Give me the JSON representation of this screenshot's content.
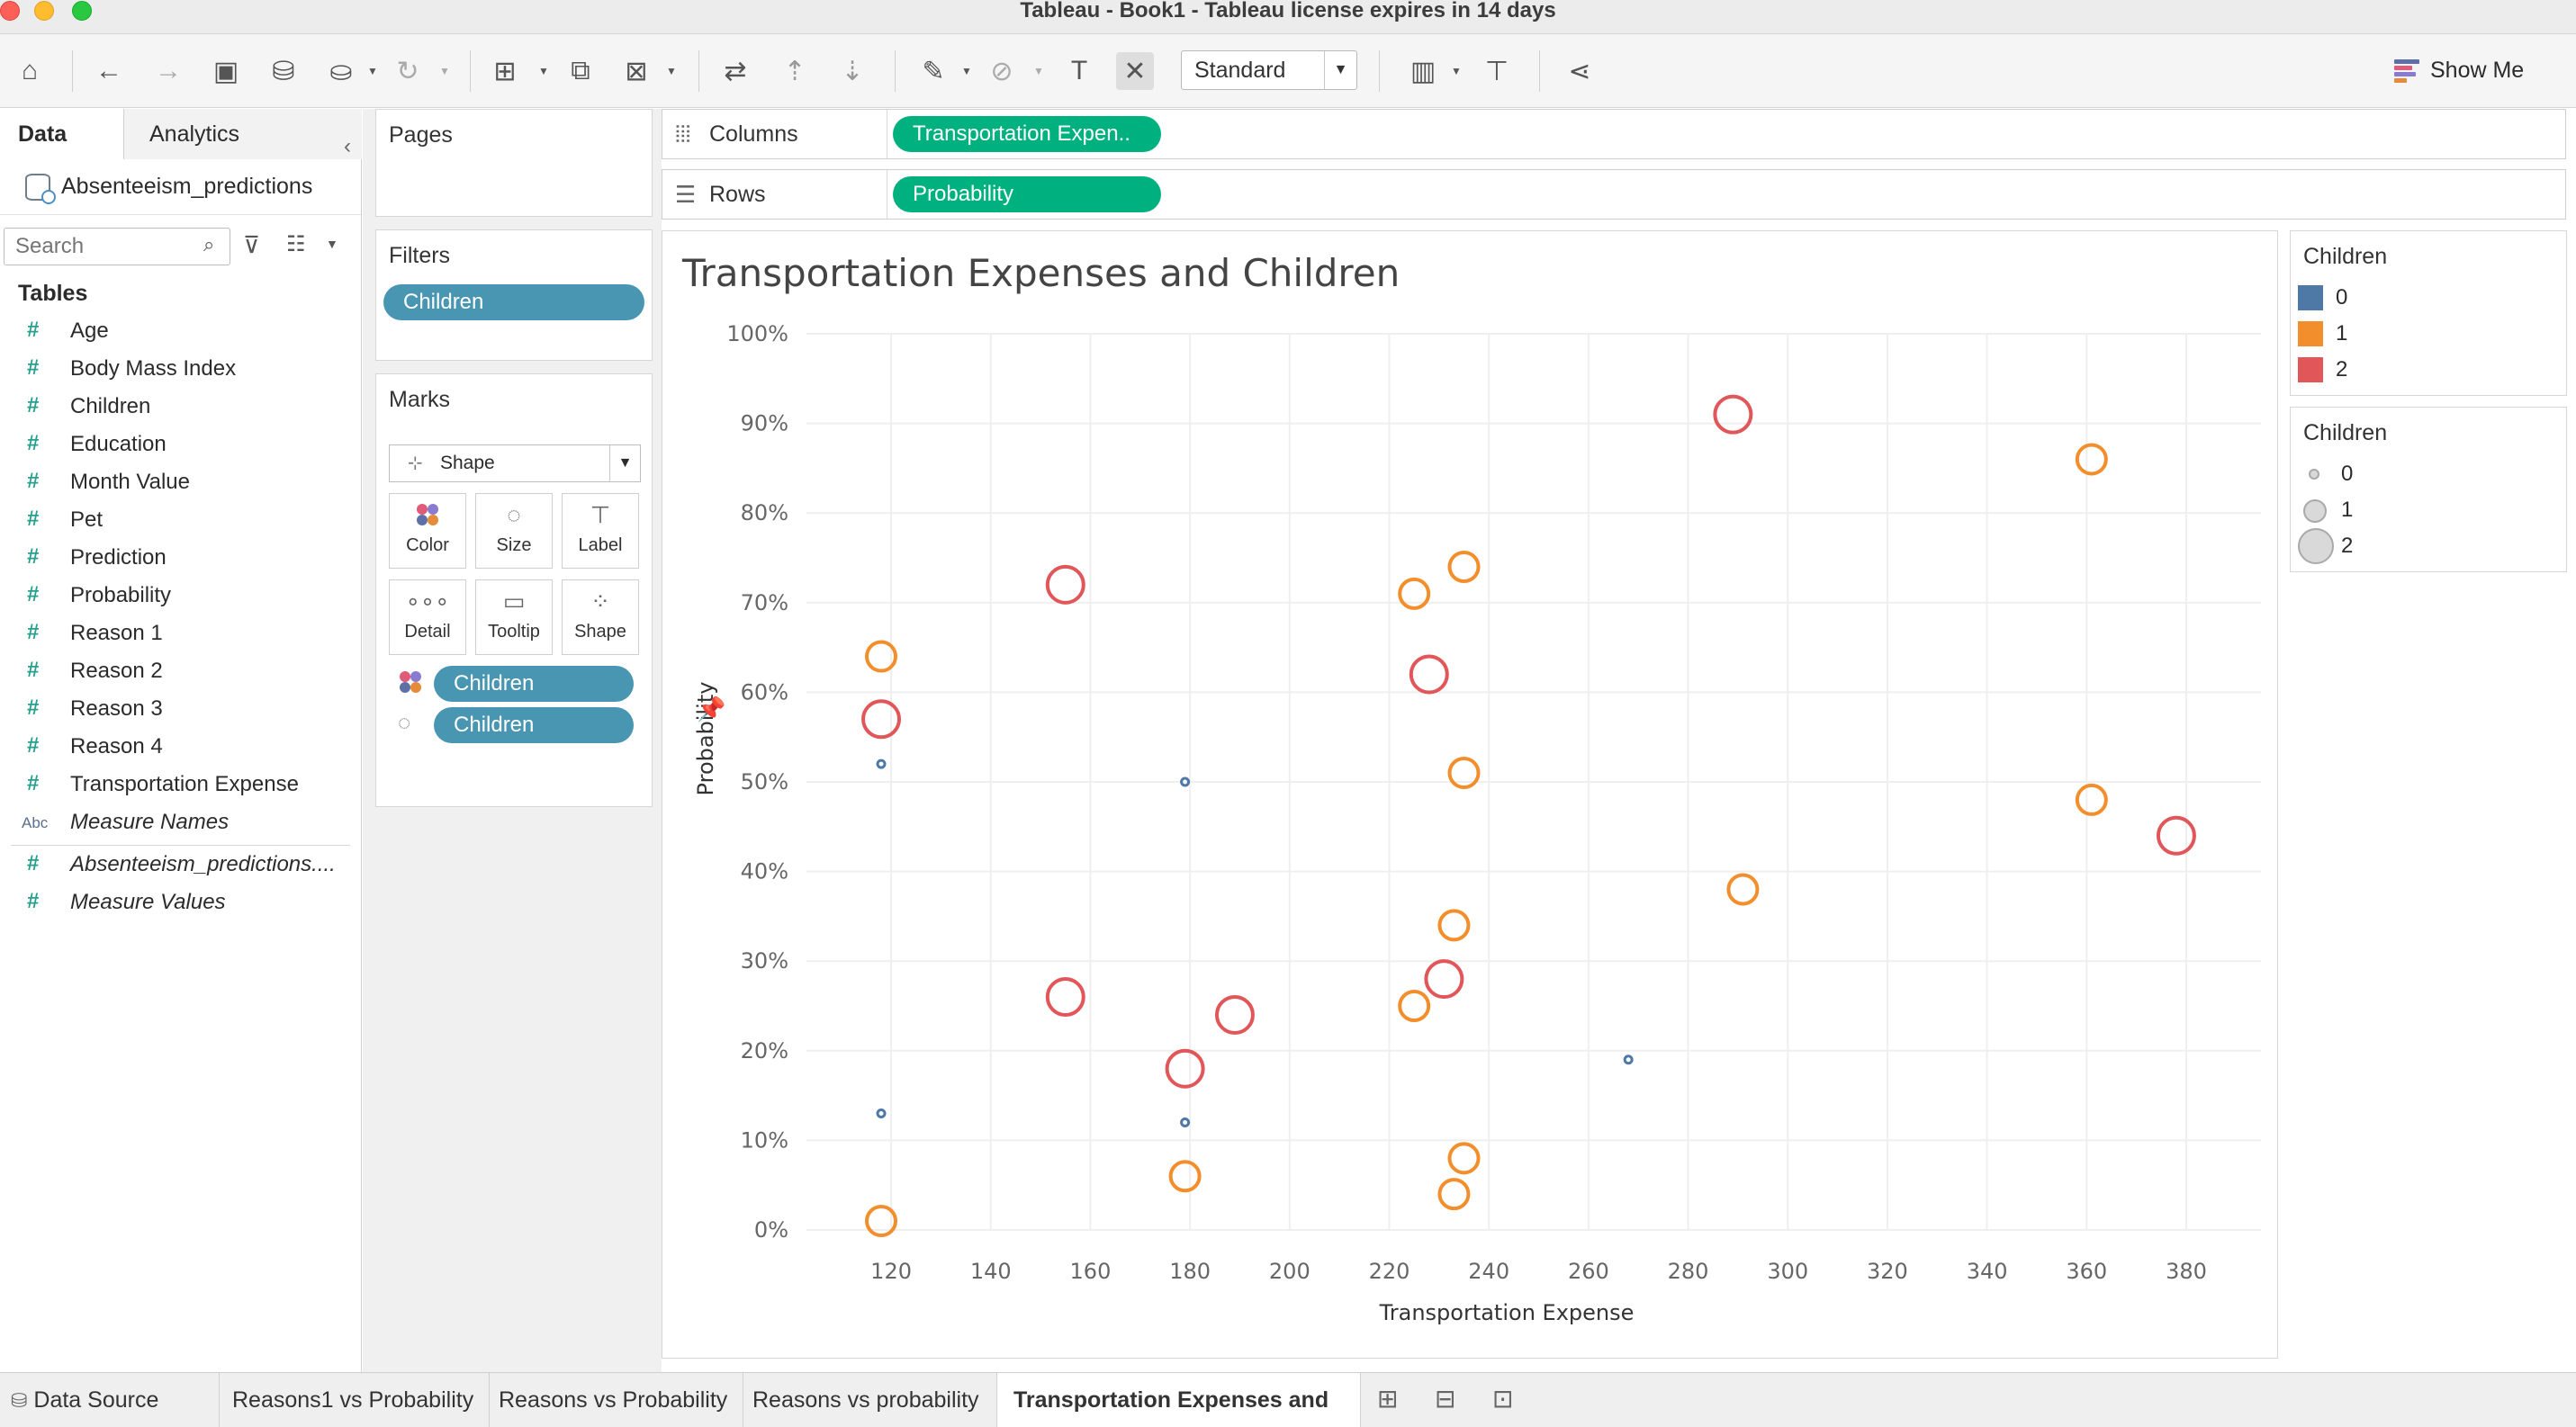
{
  "window": {
    "title": "Tableau - Book1 - Tableau license expires in 14 days"
  },
  "toolbar": {
    "fit_value": "Standard",
    "show_me": "Show Me"
  },
  "data_pane": {
    "tabs": [
      "Data",
      "Analytics"
    ],
    "datasource": "Absenteeism_predictions",
    "search_placeholder": "Search",
    "tables_heading": "Tables",
    "fields": [
      "Age",
      "Body Mass Index",
      "Children",
      "Education",
      "Month Value",
      "Pet",
      "Prediction",
      "Probability",
      "Reason 1",
      "Reason 2",
      "Reason 3",
      "Reason 4",
      "Transportation Expense"
    ],
    "measure_names": "Measure Names",
    "extra_fields": [
      "Absenteeism_predictions....",
      "Measure Values"
    ]
  },
  "cards": {
    "pages_title": "Pages",
    "filters_title": "Filters",
    "filter_pill": "Children",
    "marks_title": "Marks",
    "mark_type": "Shape",
    "mark_buttons": [
      "Color",
      "Size",
      "Label",
      "Detail",
      "Tooltip",
      "Shape"
    ],
    "mark_pills": [
      "Children",
      "Children"
    ]
  },
  "shelves": {
    "columns_label": "Columns",
    "columns_pill": "Transportation Expen..",
    "rows_label": "Rows",
    "rows_pill": "Probability"
  },
  "viz": {
    "title": "Transportation Expenses and Children"
  },
  "legends": {
    "color_title": "Children",
    "color_items": [
      {
        "label": "0",
        "color": "#4e79a7"
      },
      {
        "label": "1",
        "color": "#f28e2b"
      },
      {
        "label": "2",
        "color": "#e15759"
      }
    ],
    "size_title": "Children",
    "size_items": [
      "0",
      "1",
      "2"
    ]
  },
  "bottom_tabs": [
    "Data Source",
    "Reasons1 vs Probability",
    "Reasons vs Probability",
    "Reasons vs  probability",
    "Transportation Expenses and C..."
  ],
  "chart_data": {
    "type": "scatter",
    "title": "Transportation Expenses and Children",
    "xlabel": "Transportation Expense",
    "ylabel": "Probability",
    "x_ticks": [
      120,
      140,
      160,
      180,
      200,
      220,
      240,
      260,
      280,
      300,
      320,
      340,
      360,
      380
    ],
    "y_ticks": [
      "0%",
      "10%",
      "20%",
      "30%",
      "40%",
      "50%",
      "60%",
      "70%",
      "80%",
      "90%",
      "100%"
    ],
    "xlim": [
      103,
      395
    ],
    "ylim": [
      0,
      1
    ],
    "grid": true,
    "series": [
      {
        "name": "0",
        "color": "#4e79a7",
        "points": [
          [
            118,
            0.52
          ],
          [
            118,
            0.13
          ],
          [
            179,
            0.5
          ],
          [
            179,
            0.12
          ],
          [
            268,
            0.19
          ]
        ]
      },
      {
        "name": "1",
        "color": "#f28e2b",
        "points": [
          [
            118,
            0.64
          ],
          [
            118,
            0.01
          ],
          [
            179,
            0.06
          ],
          [
            225,
            0.71
          ],
          [
            225,
            0.25
          ],
          [
            233,
            0.34
          ],
          [
            233,
            0.04
          ],
          [
            235,
            0.74
          ],
          [
            235,
            0.51
          ],
          [
            235,
            0.08
          ],
          [
            291,
            0.38
          ],
          [
            361,
            0.86
          ],
          [
            361,
            0.48
          ]
        ]
      },
      {
        "name": "2",
        "color": "#e15759",
        "points": [
          [
            118,
            0.57
          ],
          [
            155,
            0.72
          ],
          [
            155,
            0.26
          ],
          [
            179,
            0.18
          ],
          [
            189,
            0.24
          ],
          [
            228,
            0.62
          ],
          [
            231,
            0.28
          ],
          [
            289,
            0.91
          ],
          [
            378,
            0.44
          ]
        ]
      }
    ]
  }
}
